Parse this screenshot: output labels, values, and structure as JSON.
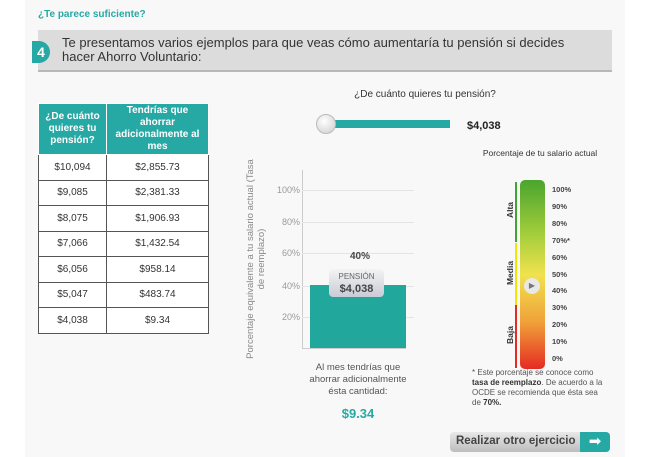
{
  "section_title": "¿Te parece suficiente?",
  "step": {
    "number": "4",
    "text": "Te presentamos varios ejemplos para que veas cómo aumentaría tu pensión si decides hacer Ahorro Voluntario:"
  },
  "table": {
    "headers": [
      "¿De cuánto quieres tu pensión?",
      "Tendrías que ahorrar adicionalmente al mes"
    ],
    "rows": [
      [
        "$10,094",
        "$2,855.73"
      ],
      [
        "$9,085",
        "$2,381.33"
      ],
      [
        "$8,075",
        "$1,906.93"
      ],
      [
        "$7,066",
        "$1,432.54"
      ],
      [
        "$6,056",
        "$958.14"
      ],
      [
        "$5,047",
        "$483.74"
      ],
      [
        "$4,038",
        "$9.34"
      ]
    ]
  },
  "slider": {
    "question": "¿De cuánto quieres tu pensión?",
    "value": "$4,038",
    "position": 0
  },
  "bar_chart": {
    "ylabel": "Porcentaje equivalente a tu salario actual (Tasa de reemplazo)",
    "ticks": [
      "100%",
      "80%",
      "60%",
      "40%",
      "20%"
    ],
    "bar_value": 40,
    "bar_label": "40%",
    "pension_label": "PENSIÓN",
    "pension_value": "$4,038"
  },
  "monthly": {
    "text": "Al mes tendrías que ahorrar adicionalmente ésta cantidad:",
    "amount": "$9.34"
  },
  "gauge": {
    "title": "Porcentaje de tu salario actual",
    "ticks": [
      "100%",
      "90%",
      "80%",
      "70%*",
      "60%",
      "50%",
      "40%",
      "30%",
      "20%",
      "10%",
      "0%"
    ],
    "zones": [
      "Alta",
      "Media",
      "Baja"
    ],
    "value": 40,
    "zone_colors": [
      "#3fa535",
      "#f2e500",
      "#e52b22"
    ]
  },
  "note": {
    "star": "*",
    "pre": "Este porcentaje se conoce como ",
    "bold1": "tasa de reemplazo",
    "mid": ". De acuerdo a la OCDE se recomienda que ésta sea de ",
    "bold2": "70%."
  },
  "button": {
    "label": "Realizar otro ejercicio"
  }
}
